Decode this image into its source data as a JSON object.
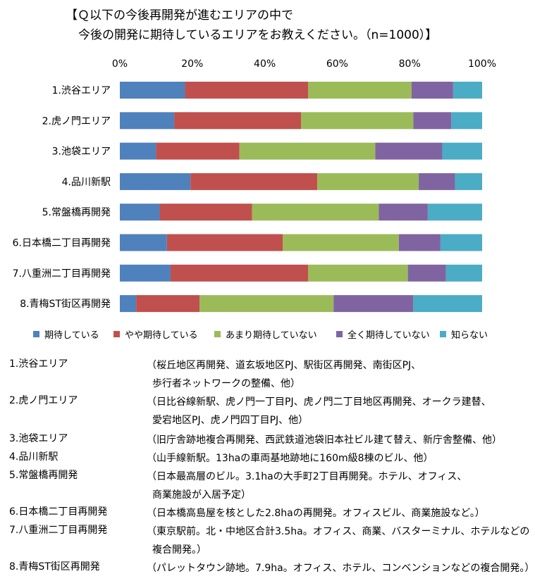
{
  "title_line1": "【Ｑ以下の今後再開発が進むエリアの中で",
  "title_line2": "今後の開発に期待しているエリアをお教えください。（n=1000）】",
  "chart_data": {
    "type": "bar",
    "orientation": "horizontal",
    "stacked": "percent",
    "title": "【Ｑ以下の今後再開発が進むエリアの中で 今後の開発に期待しているエリアをお教えください。（n=1000）】",
    "categories": [
      "1.渋谷エリア",
      "2.虎ノ門エリア",
      "3.池袋エリア",
      "4.品川新駅",
      "5.常盤橋再開発",
      "6.日本橋二丁目再開発",
      "7.八重洲二丁目再開発",
      "8.青梅ST街区再開発"
    ],
    "x_tick_labels": [
      "0%",
      "20%",
      "40%",
      "60%",
      "80%",
      "100%"
    ],
    "xlim": [
      0,
      100
    ],
    "grid": false,
    "legend_position": "bottom",
    "series": [
      {
        "name": "期待している",
        "color": "#4F81BD",
        "values": [
          18,
          15,
          10,
          19.5,
          11,
          13,
          14,
          4.5
        ]
      },
      {
        "name": "やや期待している",
        "color": "#C0504D",
        "values": [
          34,
          35,
          23,
          35,
          25.5,
          32,
          38,
          17.5
        ]
      },
      {
        "name": "あまり期待していない",
        "color": "#9BBB59",
        "values": [
          28.5,
          31,
          37.5,
          28,
          35,
          32,
          27.5,
          37
        ]
      },
      {
        "name": "全く期待していない",
        "color": "#8064A2",
        "values": [
          11.5,
          10.5,
          18.5,
          10,
          13.5,
          11.5,
          10.5,
          22
        ]
      },
      {
        "name": "知らない",
        "color": "#4BACC6",
        "values": [
          8,
          8.5,
          11,
          7.5,
          15,
          11.5,
          10,
          19
        ]
      }
    ]
  },
  "notes": [
    {
      "name": "1.渋谷エリア",
      "lines": [
        "（桜丘地区再開発、道玄坂地区PJ、駅街区再開発、南街区PJ、",
        "歩行者ネットワークの整備、他）"
      ]
    },
    {
      "name": "2.虎ノ門エリア",
      "lines": [
        "（日比谷線新駅、虎ノ門一丁目PJ、虎ノ門二丁目地区再開発、オークラ建替、",
        "愛宕地区PJ、虎ノ門四丁目PJ、他）"
      ]
    },
    {
      "name": "3.池袋エリア",
      "lines": [
        "（旧庁舎跡地複合再開発、西武鉄道池袋旧本社ビル建て替え、新庁舎整備、他）"
      ]
    },
    {
      "name": "4.品川新駅",
      "lines": [
        "（山手線新駅。13haの車両基地跡地に160m級8棟のビル、他）"
      ]
    },
    {
      "name": "5.常盤橋再開発",
      "lines": [
        "（日本最高層のビル。3.1haの大手町2丁目再開発。ホテル、オフィス、",
        "商業施設が入居予定）"
      ]
    },
    {
      "name": "6.日本橋二丁目再開発",
      "lines": [
        "（日本橋高島屋を核とした2.8haの再開発。オフィスビル、商業施設など。）"
      ]
    },
    {
      "name": "7.八重洲二丁目再開発",
      "lines": [
        "（東京駅前。北・中地区合計3.5ha。オフィス、商業、バスターミナル、ホテルなどの",
        "複合開発。）"
      ]
    },
    {
      "name": "8.青梅ST街区再開発",
      "lines": [
        "（パレットタウン跡地。7.9ha。オフィス、ホテル、コンベンションなどの複合開発。）"
      ]
    }
  ]
}
